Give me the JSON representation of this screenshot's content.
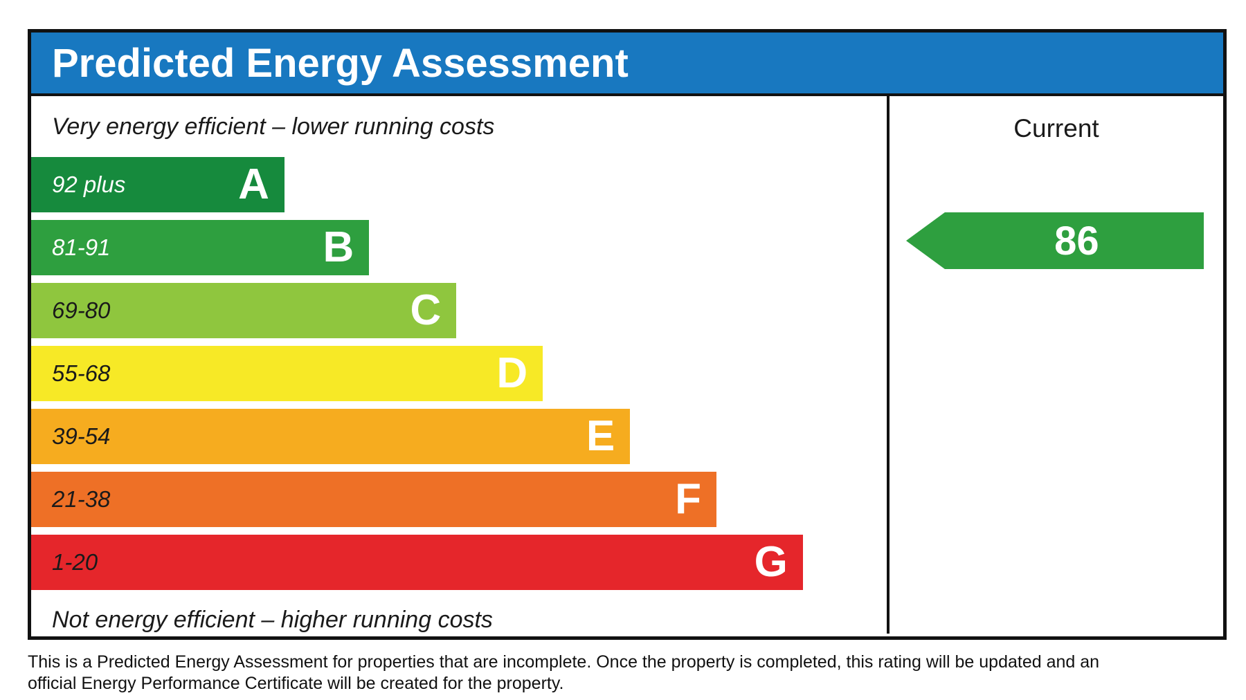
{
  "header": {
    "title": "Predicted Energy Assessment",
    "bg_color": "#1878c0"
  },
  "captions": {
    "top": "Very energy efficient – lower running costs",
    "bottom": "Not energy efficient – higher running costs"
  },
  "current_column": {
    "label": "Current"
  },
  "footnote": {
    "line1": "This is a Predicted Energy Assessment for properties that are incomplete. Once the property is completed, this rating will be updated and an",
    "line2": "official Energy Performance Certificate will be created for the property."
  },
  "chart_data": {
    "type": "bar",
    "title": "Predicted Energy Assessment",
    "legend_position": "none",
    "bands": [
      {
        "letter": "A",
        "range_label": "92 plus",
        "range_min": 92,
        "range_max": 100,
        "color": "#168a3d",
        "width_pct": 29.6,
        "label_tone": "light"
      },
      {
        "letter": "B",
        "range_label": "81-91",
        "range_min": 81,
        "range_max": 91,
        "color": "#2e9f3f",
        "width_pct": 39.5,
        "label_tone": "light"
      },
      {
        "letter": "C",
        "range_label": "69-80",
        "range_min": 69,
        "range_max": 80,
        "color": "#8fc63e",
        "width_pct": 49.7,
        "label_tone": "dark"
      },
      {
        "letter": "D",
        "range_label": "55-68",
        "range_min": 55,
        "range_max": 68,
        "color": "#f7e926",
        "width_pct": 59.8,
        "label_tone": "dark"
      },
      {
        "letter": "E",
        "range_label": "39-54",
        "range_min": 39,
        "range_max": 54,
        "color": "#f6ac1f",
        "width_pct": 70.0,
        "label_tone": "dark"
      },
      {
        "letter": "F",
        "range_label": "21-38",
        "range_min": 21,
        "range_max": 38,
        "color": "#ee7026",
        "width_pct": 80.1,
        "label_tone": "dark"
      },
      {
        "letter": "G",
        "range_label": "1-20",
        "range_min": 1,
        "range_max": 20,
        "color": "#e5262b",
        "width_pct": 90.2,
        "label_tone": "dark"
      }
    ],
    "current": {
      "value": 86,
      "band": "B",
      "arrow_color": "#2e9f3f"
    }
  }
}
